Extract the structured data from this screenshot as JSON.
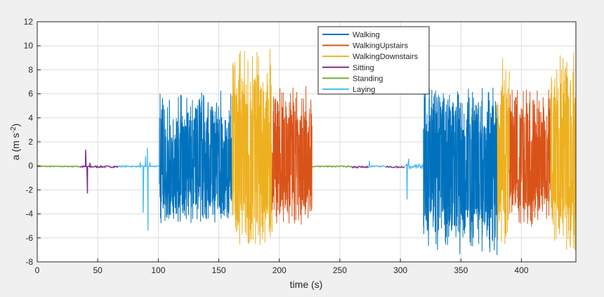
{
  "chart_data": {
    "type": "line",
    "title": "",
    "xlabel": "time (s)",
    "ylabel": "a (m s",
    "ylabel_sup": "-2",
    "ylabel_close": ")",
    "xlim": [
      0,
      445
    ],
    "ylim": [
      -8,
      12
    ],
    "xticks": [
      0,
      50,
      100,
      150,
      200,
      250,
      300,
      350,
      400
    ],
    "yticks": [
      -8,
      -6,
      -4,
      -2,
      0,
      2,
      4,
      6,
      8,
      10,
      12
    ],
    "grid": true,
    "legend_position": "top-center",
    "series": [
      {
        "name": "Walking",
        "color": "#0072BD"
      },
      {
        "name": "WalkingUpstairs",
        "color": "#D95319"
      },
      {
        "name": "WalkingDownstairs",
        "color": "#EDB120"
      },
      {
        "name": "Sitting",
        "color": "#7E2F8E"
      },
      {
        "name": "Standing",
        "color": "#77AC30"
      },
      {
        "name": "Laying",
        "color": "#4DBEEE"
      }
    ],
    "segments": [
      {
        "series": "Standing",
        "t": [
          0,
          35
        ],
        "min": -0.1,
        "max": 0.1
      },
      {
        "series": "Sitting",
        "t": [
          35,
          67
        ],
        "min": -0.15,
        "max": 0.15,
        "spikes": [
          [
            40,
            1.35
          ],
          [
            41.5,
            -2.3
          ],
          [
            43.5,
            0.25
          ]
        ]
      },
      {
        "series": "Laying",
        "t": [
          67,
          101
        ],
        "min": -0.1,
        "max": 0.1,
        "spikes": [
          [
            85,
            0.3
          ],
          [
            87.5,
            -3.9
          ],
          [
            89.5,
            0.8
          ],
          [
            91,
            1.5
          ],
          [
            91.5,
            -5.4
          ],
          [
            93,
            0.3
          ]
        ]
      },
      {
        "series": "Walking",
        "t": [
          101,
          161
        ],
        "min": -4.8,
        "max": 6.3
      },
      {
        "series": "WalkingDownstairs",
        "t": [
          161,
          194
        ],
        "min": -6.7,
        "max": 10.0
      },
      {
        "series": "WalkingUpstairs",
        "t": [
          194,
          227
        ],
        "min": -5.0,
        "max": 6.7
      },
      {
        "series": "Standing",
        "t": [
          227,
          260
        ],
        "min": -0.1,
        "max": 0.1
      },
      {
        "series": "Sitting",
        "t": [
          260,
          274
        ],
        "min": -0.15,
        "max": 0.1
      },
      {
        "series": "Laying",
        "t": [
          274,
          288
        ],
        "min": -0.1,
        "max": 0.1,
        "spikes": [
          [
            274.5,
            0.4
          ]
        ]
      },
      {
        "series": "Sitting",
        "t": [
          288,
          304
        ],
        "min": -0.15,
        "max": 0.1
      },
      {
        "series": "Laying",
        "t": [
          304,
          319
        ],
        "min": -0.3,
        "max": 0.5,
        "spikes": [
          [
            305.5,
            -2.8
          ],
          [
            307,
            0.6
          ]
        ]
      },
      {
        "series": "Walking",
        "t": [
          319,
          380
        ],
        "min": -7.6,
        "max": 6.6
      },
      {
        "series": "WalkingDownstairs",
        "t": [
          380,
          390
        ],
        "min": -7.0,
        "max": 9.2
      },
      {
        "series": "WalkingUpstairs",
        "t": [
          390,
          424
        ],
        "min": -5.2,
        "max": 6.7
      },
      {
        "series": "WalkingDownstairs",
        "t": [
          424,
          445
        ],
        "min": -7.2,
        "max": 10.0
      }
    ]
  }
}
